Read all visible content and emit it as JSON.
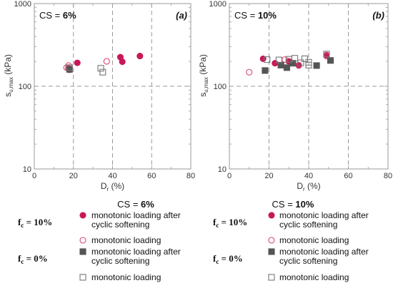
{
  "chart_data": [
    {
      "type": "scatter",
      "tag": "(a)",
      "cs_label": "CS = ",
      "cs_value": "6%",
      "xlabel": "D",
      "xlabel_sub": "r",
      "xlabel_unit": " (%)",
      "ylabel": "s",
      "ylabel_sub": "u,max",
      "ylabel_unit": " (kPa)",
      "xlim": [
        0,
        80
      ],
      "ylim": [
        10,
        1000
      ],
      "yscale": "log",
      "x_ticks": [
        "0",
        "20",
        "40",
        "60",
        "80"
      ],
      "y_ticks": [
        "10",
        "100",
        "1000"
      ],
      "grid": "dashed at x = 20, 40, 60 and y = 100",
      "series": [
        {
          "key": "f10_cyclic",
          "points": [
            [
              17.5,
              165
            ],
            [
              18,
              158
            ],
            [
              22,
              192
            ],
            [
              44,
              225
            ],
            [
              45,
              198
            ],
            [
              54,
              232
            ]
          ]
        },
        {
          "key": "f10_mono",
          "points": [
            [
              16.5,
              168
            ],
            [
              17.5,
              178
            ],
            [
              37,
              200
            ]
          ]
        },
        {
          "key": "f0_cyclic",
          "points": [
            [
              18,
              160
            ]
          ]
        },
        {
          "key": "f0_mono",
          "points": [
            [
              18,
              168
            ],
            [
              34,
              165
            ],
            [
              35,
              148
            ]
          ]
        }
      ]
    },
    {
      "type": "scatter",
      "tag": "(b)",
      "cs_label": "CS = ",
      "cs_value": "10%",
      "xlabel": "D",
      "xlabel_sub": "r",
      "xlabel_unit": " (%)",
      "ylabel": "s",
      "ylabel_sub": "u,max",
      "ylabel_unit": " (kPa)",
      "xlim": [
        0,
        80
      ],
      "ylim": [
        10,
        1000
      ],
      "yscale": "log",
      "x_ticks": [
        "0",
        "20",
        "40",
        "60",
        "80"
      ],
      "y_ticks": [
        "10",
        "100",
        "1000"
      ],
      "grid": "dashed at x = 20, 40, 60 and y = 100",
      "series": [
        {
          "key": "f10_cyclic",
          "points": [
            [
              17,
              215
            ],
            [
              23,
              190
            ],
            [
              30,
              200
            ],
            [
              35,
              178
            ],
            [
              49,
              238
            ]
          ]
        },
        {
          "key": "f10_mono",
          "points": [
            [
              10,
              148
            ],
            [
              28,
              210
            ],
            [
              35,
              180
            ],
            [
              49,
              232
            ]
          ]
        },
        {
          "key": "f0_cyclic",
          "points": [
            [
              18,
              155
            ],
            [
              26,
              180
            ],
            [
              29,
              168
            ],
            [
              32,
              190
            ],
            [
              44,
              178
            ],
            [
              51,
              205
            ]
          ]
        },
        {
          "key": "f0_mono",
          "points": [
            [
              19,
              210
            ],
            [
              25,
              208
            ],
            [
              30,
              212
            ],
            [
              33,
              218
            ],
            [
              36,
              192
            ],
            [
              38,
              215
            ],
            [
              40,
              180
            ],
            [
              40,
              195
            ],
            [
              49,
              245
            ]
          ]
        }
      ]
    }
  ],
  "legend": [
    {
      "cs_label": "CS = ",
      "cs_value": "6%",
      "groups": [
        {
          "fc_prefix": "f",
          "fc_sub": "c",
          "fc_value": " = 10%",
          "items": [
            {
              "key": "f10_cyclic",
              "lines": [
                "monotonic loading after",
                "cyclic softening"
              ]
            },
            {
              "key": "f10_mono",
              "lines": [
                "monotonic loading"
              ]
            }
          ]
        },
        {
          "fc_prefix": "f",
          "fc_sub": "c",
          "fc_value": " = 0%",
          "items": [
            {
              "key": "f0_cyclic",
              "lines": [
                "monotonic loading after",
                "cyclic softening"
              ]
            },
            {
              "key": "f0_mono",
              "lines": [
                "monotonic loading"
              ]
            }
          ]
        }
      ]
    },
    {
      "cs_label": "CS = ",
      "cs_value": "10%",
      "groups": [
        {
          "fc_prefix": "f",
          "fc_sub": "c",
          "fc_value": " = 10%",
          "items": [
            {
              "key": "f10_cyclic",
              "lines": [
                "monotonic loading after",
                "cyclic softening"
              ]
            },
            {
              "key": "f10_mono",
              "lines": [
                "monotonic loading"
              ]
            }
          ]
        },
        {
          "fc_prefix": "f",
          "fc_sub": "c",
          "fc_value": " = 0%",
          "items": [
            {
              "key": "f0_cyclic",
              "lines": [
                "monotonic loading after",
                "cyclic softening"
              ]
            },
            {
              "key": "f0_mono",
              "lines": [
                "monotonic loading"
              ]
            }
          ]
        }
      ]
    }
  ],
  "styles": {
    "f10_cyclic": {
      "shape": "circle",
      "fill": "#c8185a",
      "stroke": "#c8185a"
    },
    "f10_mono": {
      "shape": "circle",
      "fill": "none",
      "stroke": "#d9446e"
    },
    "f0_cyclic": {
      "shape": "square",
      "fill": "#555555",
      "stroke": "#555555"
    },
    "f0_mono": {
      "shape": "square",
      "fill": "none",
      "stroke": "#777777"
    },
    "grid_color": "#999999",
    "axis_color": "#999999"
  }
}
